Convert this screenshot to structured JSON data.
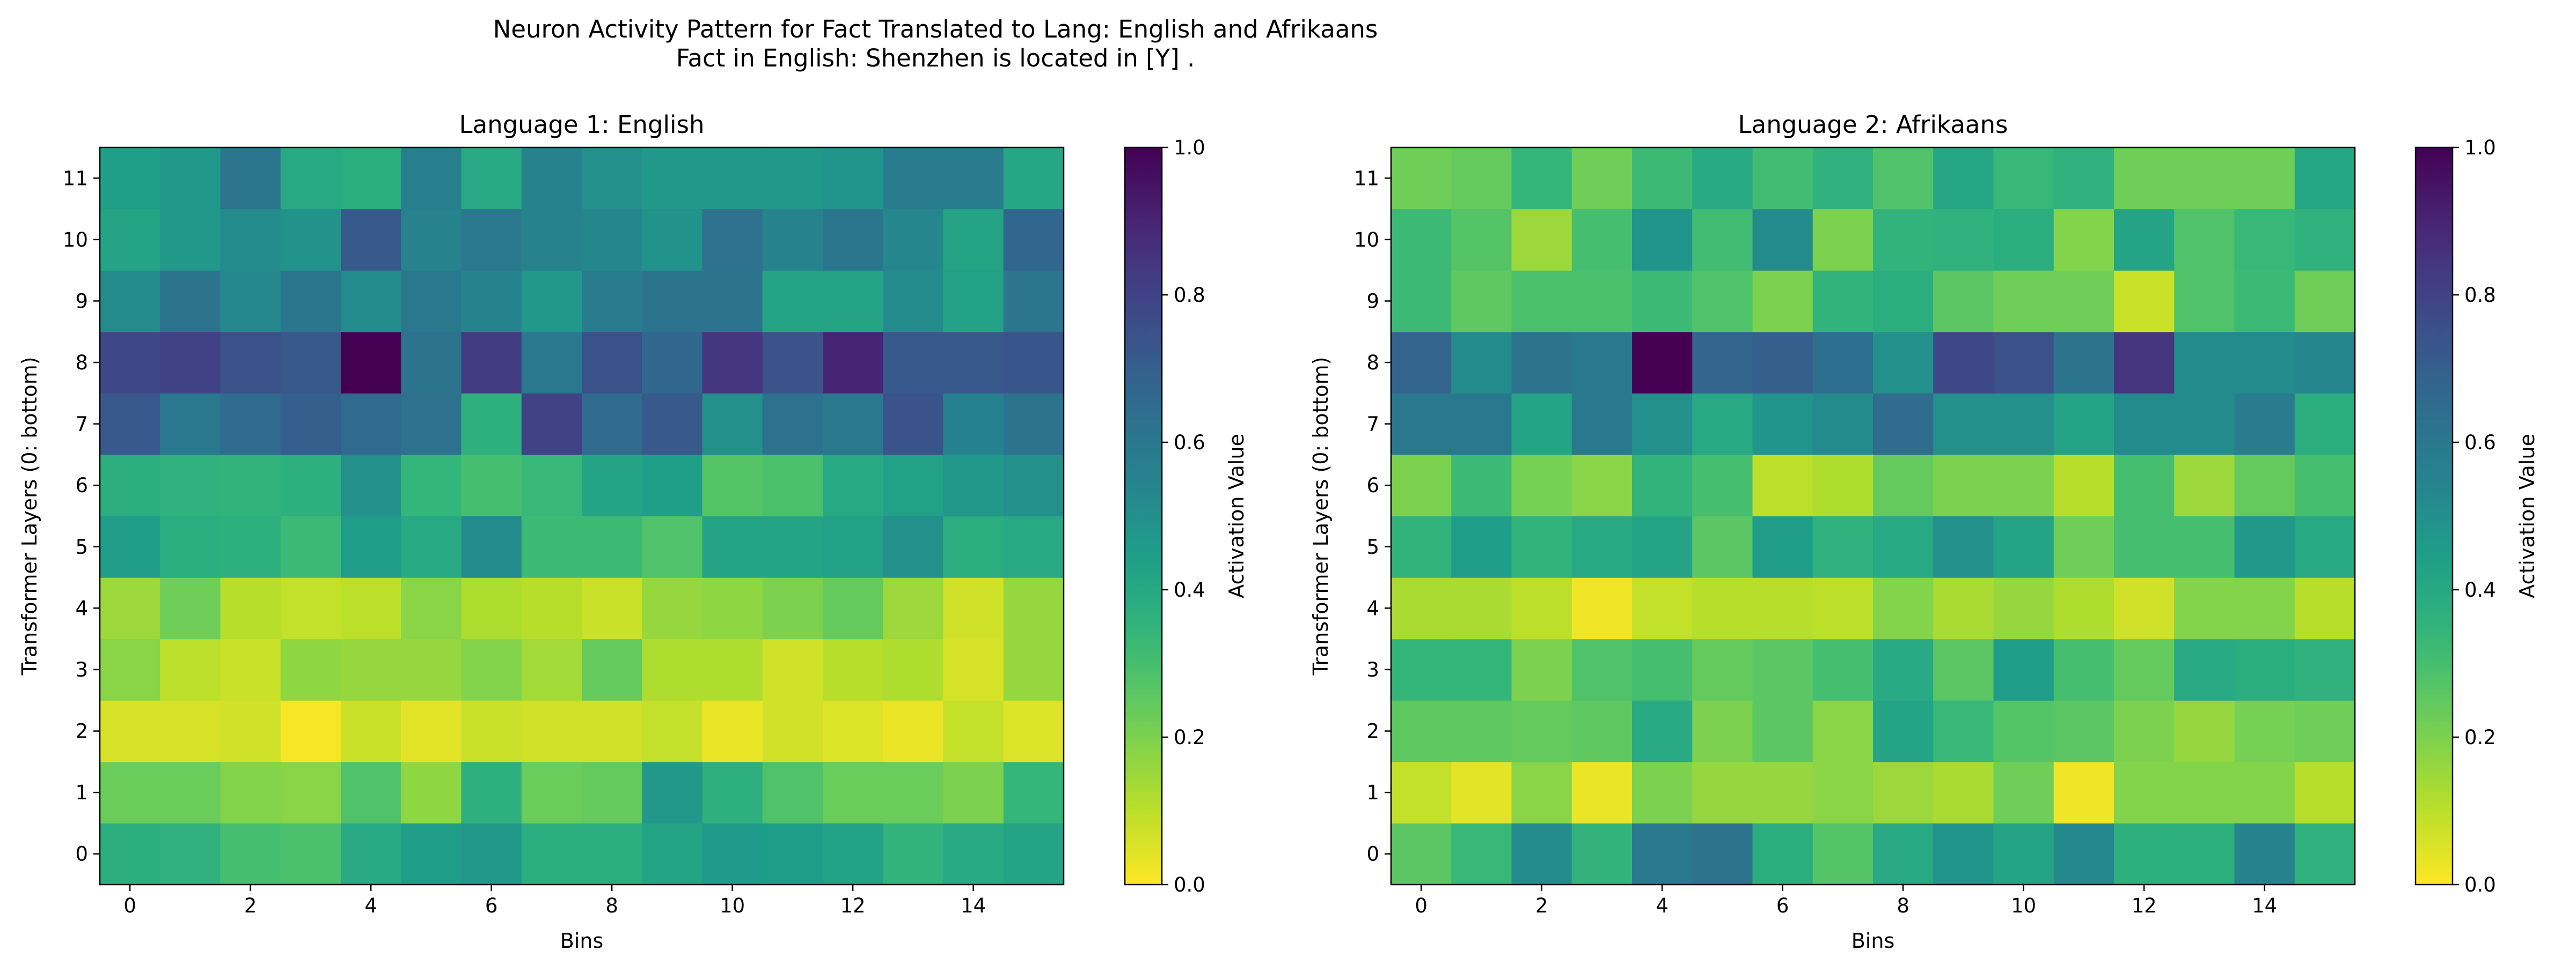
{
  "figure": {
    "title_line1": "Neuron Activity Pattern for Fact Translated to Lang: English and Afrikaans",
    "title_line2": "Fact in English: Shenzhen is located in [Y] ."
  },
  "chart_data": [
    {
      "type": "heatmap",
      "title": "Language 1: English",
      "xlabel": "Bins",
      "ylabel": "Transformer Layers (0: bottom)",
      "colorbar_label": "Activation Value",
      "colormap": "viridis_r",
      "clim": [
        0,
        1
      ],
      "colorbar_ticks": [
        "0.0",
        "0.2",
        "0.4",
        "0.6",
        "0.8",
        "1.0"
      ],
      "x_ticks": [
        0,
        2,
        4,
        6,
        8,
        10,
        12,
        14
      ],
      "y_ticks": [
        0,
        1,
        2,
        3,
        4,
        5,
        6,
        7,
        8,
        9,
        10,
        11
      ],
      "rows": [
        [
          0.38,
          0.36,
          0.3,
          0.29,
          0.4,
          0.45,
          0.47,
          0.38,
          0.38,
          0.42,
          0.46,
          0.45,
          0.43,
          0.35,
          0.4,
          0.42
        ],
        [
          0.23,
          0.23,
          0.19,
          0.18,
          0.28,
          0.17,
          0.37,
          0.23,
          0.24,
          0.47,
          0.37,
          0.28,
          0.23,
          0.23,
          0.2,
          0.34
        ],
        [
          0.06,
          0.06,
          0.07,
          0.01,
          0.08,
          0.04,
          0.08,
          0.07,
          0.07,
          0.09,
          0.03,
          0.07,
          0.05,
          0.03,
          0.09,
          0.05
        ],
        [
          0.18,
          0.1,
          0.08,
          0.17,
          0.16,
          0.16,
          0.19,
          0.14,
          0.24,
          0.12,
          0.12,
          0.07,
          0.11,
          0.12,
          0.06,
          0.16
        ],
        [
          0.15,
          0.22,
          0.11,
          0.09,
          0.1,
          0.18,
          0.12,
          0.11,
          0.08,
          0.16,
          0.17,
          0.2,
          0.24,
          0.15,
          0.07,
          0.16
        ],
        [
          0.45,
          0.38,
          0.37,
          0.32,
          0.45,
          0.4,
          0.52,
          0.32,
          0.32,
          0.28,
          0.42,
          0.42,
          0.43,
          0.5,
          0.38,
          0.4
        ],
        [
          0.38,
          0.36,
          0.35,
          0.37,
          0.5,
          0.34,
          0.3,
          0.33,
          0.42,
          0.44,
          0.27,
          0.29,
          0.4,
          0.43,
          0.47,
          0.5
        ],
        [
          0.72,
          0.6,
          0.65,
          0.7,
          0.66,
          0.63,
          0.37,
          0.8,
          0.65,
          0.72,
          0.5,
          0.63,
          0.6,
          0.74,
          0.56,
          0.62
        ],
        [
          0.78,
          0.8,
          0.75,
          0.72,
          1.0,
          0.62,
          0.82,
          0.6,
          0.75,
          0.67,
          0.84,
          0.74,
          0.9,
          0.72,
          0.72,
          0.73
        ],
        [
          0.52,
          0.62,
          0.53,
          0.61,
          0.52,
          0.6,
          0.55,
          0.47,
          0.58,
          0.62,
          0.62,
          0.42,
          0.42,
          0.52,
          0.43,
          0.61
        ],
        [
          0.42,
          0.47,
          0.52,
          0.49,
          0.72,
          0.55,
          0.6,
          0.55,
          0.54,
          0.49,
          0.63,
          0.55,
          0.61,
          0.54,
          0.42,
          0.67
        ],
        [
          0.44,
          0.47,
          0.61,
          0.4,
          0.38,
          0.57,
          0.4,
          0.55,
          0.5,
          0.47,
          0.47,
          0.47,
          0.48,
          0.58,
          0.58,
          0.41
        ]
      ]
    },
    {
      "type": "heatmap",
      "title": "Language 2: Afrikaans",
      "xlabel": "Bins",
      "ylabel": "Transformer Layers (0: bottom)",
      "colorbar_label": "Activation Value",
      "colormap": "viridis_r",
      "clim": [
        0,
        1
      ],
      "colorbar_ticks": [
        "0.0",
        "0.2",
        "0.4",
        "0.6",
        "0.8",
        "1.0"
      ],
      "x_ticks": [
        0,
        2,
        4,
        6,
        8,
        10,
        12,
        14
      ],
      "y_ticks": [
        0,
        1,
        2,
        3,
        4,
        5,
        6,
        7,
        8,
        9,
        10,
        11
      ],
      "rows": [
        [
          0.26,
          0.33,
          0.52,
          0.35,
          0.6,
          0.62,
          0.38,
          0.27,
          0.4,
          0.48,
          0.42,
          0.53,
          0.37,
          0.37,
          0.55,
          0.36
        ],
        [
          0.09,
          0.04,
          0.18,
          0.03,
          0.2,
          0.16,
          0.16,
          0.18,
          0.15,
          0.13,
          0.22,
          0.02,
          0.19,
          0.19,
          0.19,
          0.11
        ],
        [
          0.25,
          0.25,
          0.24,
          0.25,
          0.4,
          0.2,
          0.26,
          0.18,
          0.42,
          0.33,
          0.27,
          0.26,
          0.2,
          0.16,
          0.21,
          0.22
        ],
        [
          0.34,
          0.34,
          0.2,
          0.28,
          0.3,
          0.24,
          0.26,
          0.3,
          0.4,
          0.26,
          0.45,
          0.3,
          0.24,
          0.4,
          0.38,
          0.36
        ],
        [
          0.13,
          0.13,
          0.1,
          0.02,
          0.09,
          0.11,
          0.11,
          0.1,
          0.19,
          0.13,
          0.16,
          0.12,
          0.07,
          0.19,
          0.19,
          0.11
        ],
        [
          0.35,
          0.45,
          0.35,
          0.4,
          0.42,
          0.26,
          0.45,
          0.36,
          0.4,
          0.5,
          0.42,
          0.22,
          0.3,
          0.3,
          0.47,
          0.4
        ],
        [
          0.2,
          0.32,
          0.21,
          0.18,
          0.35,
          0.3,
          0.1,
          0.12,
          0.24,
          0.2,
          0.2,
          0.11,
          0.3,
          0.15,
          0.24,
          0.3
        ],
        [
          0.6,
          0.6,
          0.42,
          0.6,
          0.5,
          0.4,
          0.48,
          0.52,
          0.65,
          0.5,
          0.5,
          0.42,
          0.52,
          0.52,
          0.58,
          0.38
        ],
        [
          0.68,
          0.52,
          0.62,
          0.6,
          1.0,
          0.68,
          0.7,
          0.64,
          0.5,
          0.78,
          0.75,
          0.62,
          0.85,
          0.52,
          0.52,
          0.54
        ],
        [
          0.32,
          0.25,
          0.29,
          0.29,
          0.32,
          0.28,
          0.2,
          0.35,
          0.38,
          0.26,
          0.22,
          0.22,
          0.08,
          0.28,
          0.32,
          0.22
        ],
        [
          0.32,
          0.27,
          0.15,
          0.3,
          0.48,
          0.31,
          0.52,
          0.2,
          0.35,
          0.36,
          0.38,
          0.19,
          0.42,
          0.28,
          0.33,
          0.36
        ],
        [
          0.22,
          0.24,
          0.34,
          0.22,
          0.32,
          0.4,
          0.31,
          0.36,
          0.28,
          0.41,
          0.33,
          0.36,
          0.22,
          0.22,
          0.22,
          0.41
        ]
      ]
    }
  ]
}
